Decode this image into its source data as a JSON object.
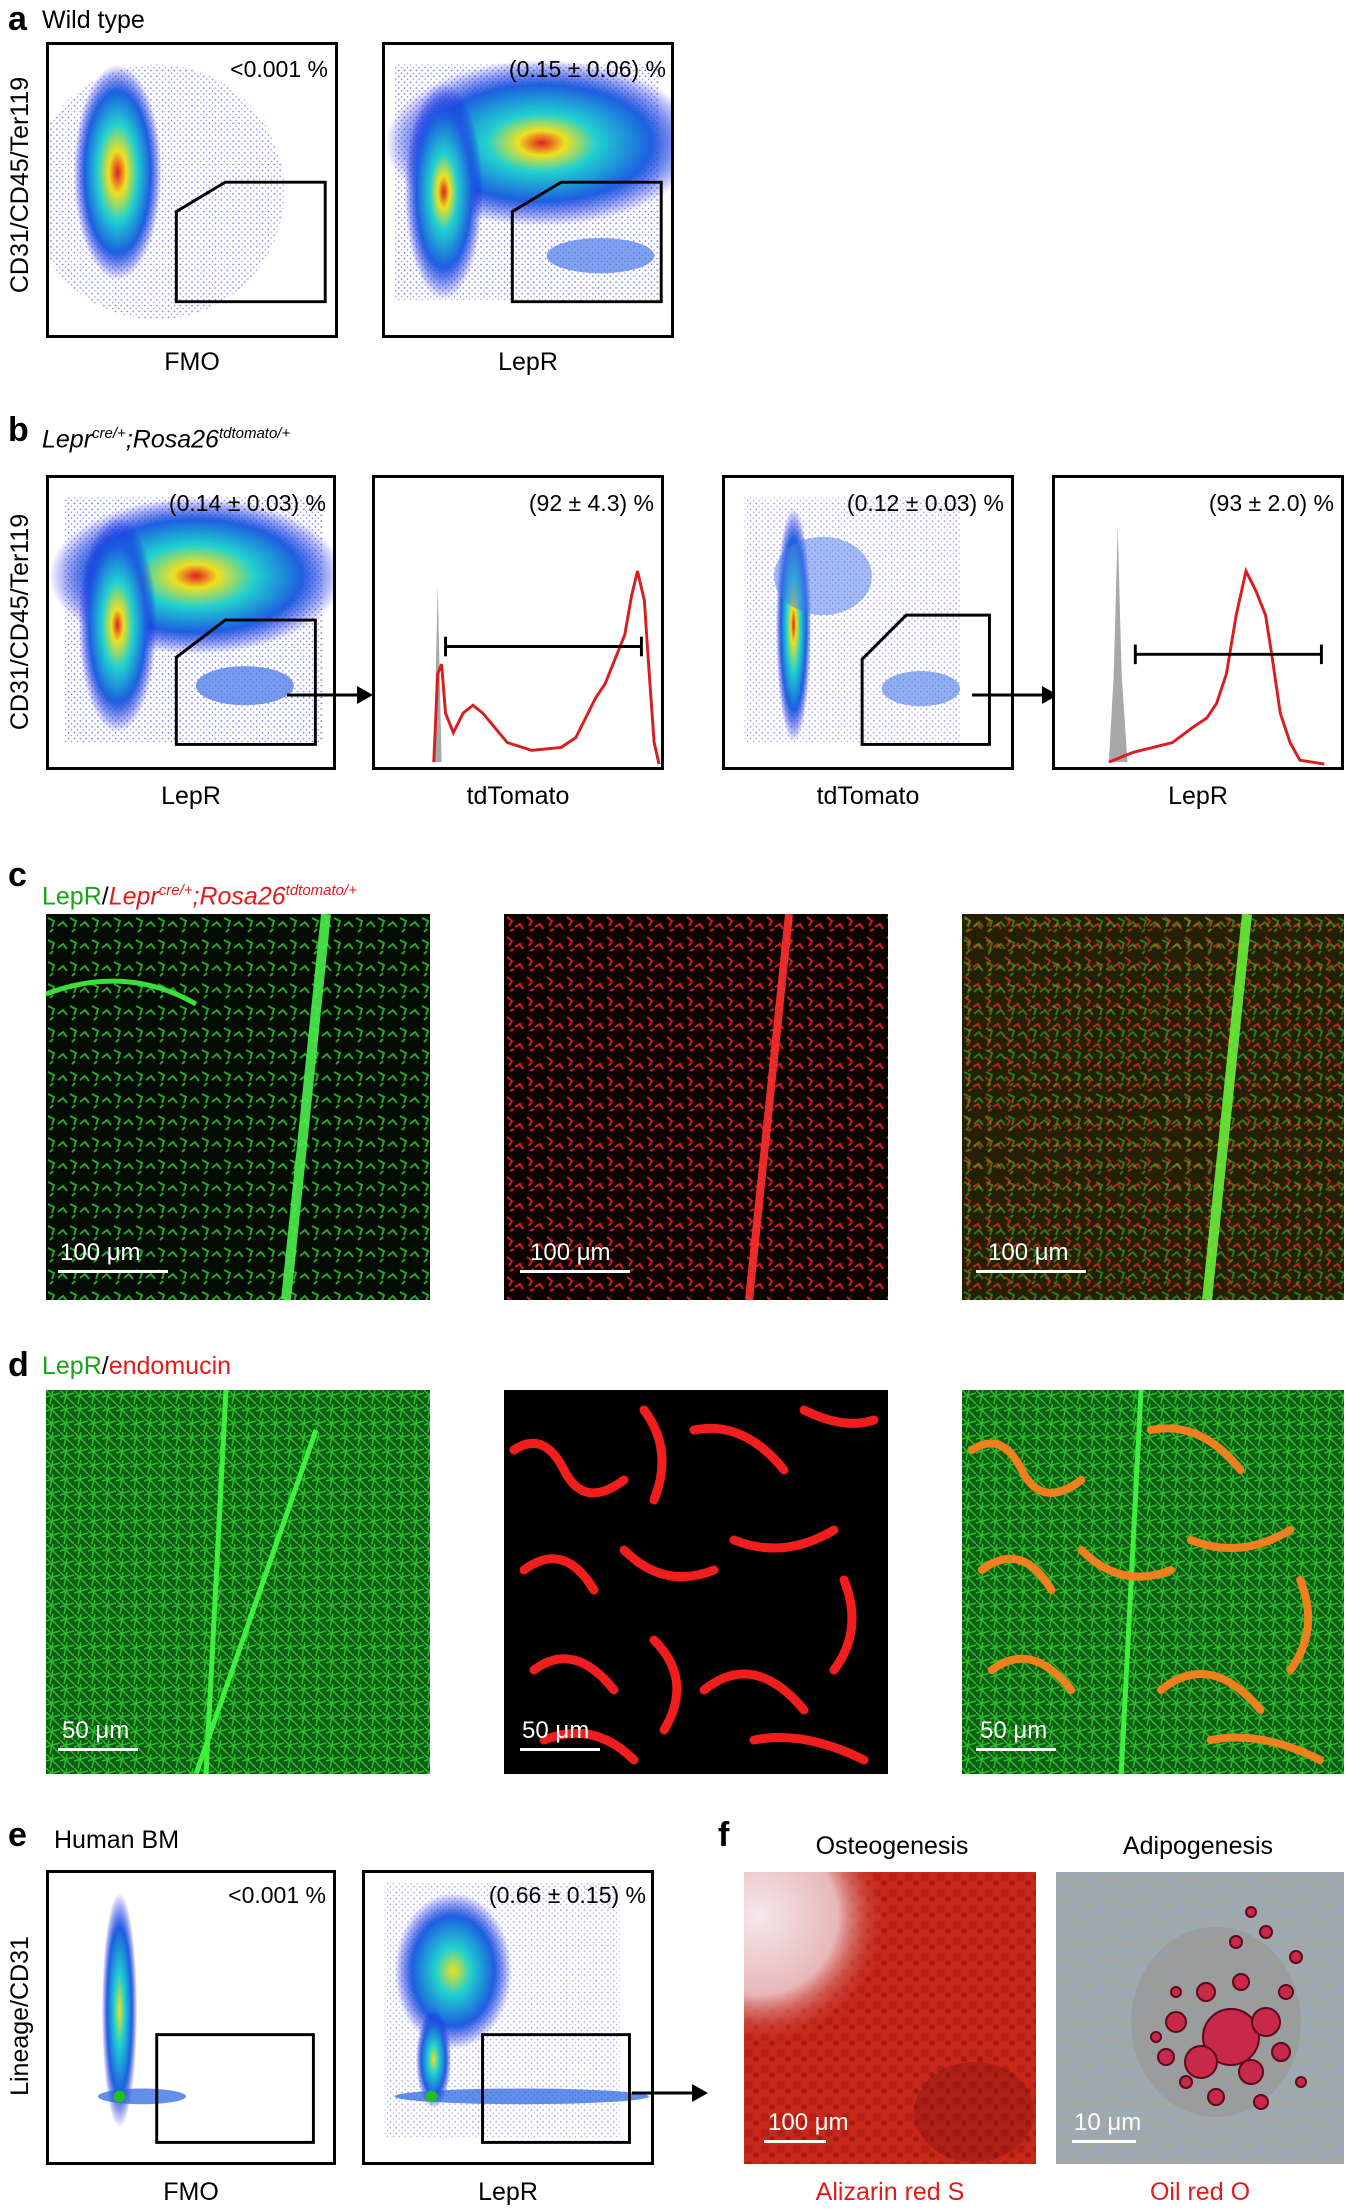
{
  "panel_a": {
    "letter": "a",
    "title": "Wild type",
    "ylabel": "CD31/CD45/Ter119",
    "plots": [
      {
        "pct": "<0.001 %",
        "xlabel": "FMO"
      },
      {
        "pct": "(0.15 ± 0.06) %",
        "xlabel": "LepR"
      }
    ]
  },
  "panel_b": {
    "letter": "b",
    "title_gene1": "Lepr",
    "title_sup1": "cre/+",
    "title_gene2": ";Rosa26",
    "title_sup2": "tdtomato/+",
    "ylabel": "CD31/CD45/Ter119",
    "plots": [
      {
        "pct": "(0.14 ± 0.03) %",
        "xlabel": "LepR"
      },
      {
        "pct": "(92 ± 4.3) %",
        "xlabel": "tdTomato"
      },
      {
        "pct": "(0.12 ± 0.03) %",
        "xlabel": "tdTomato"
      },
      {
        "pct": "(93 ± 2.0) %",
        "xlabel": "LepR"
      }
    ]
  },
  "panel_c": {
    "letter": "c",
    "title_green": "LepR",
    "title_sep": "/",
    "title_red1": "Lepr",
    "title_sup1": "cre/+",
    "title_red2": ";Rosa26",
    "title_sup2": "tdtomato/+",
    "scale": "100 μm"
  },
  "panel_d": {
    "letter": "d",
    "title_green": "LepR",
    "title_sep": "/",
    "title_red": "endomucin",
    "scale": "50 μm"
  },
  "panel_e": {
    "letter": "e",
    "title": "Human BM",
    "ylabel": "Lineage/CD31",
    "plots": [
      {
        "pct": "<0.001 %",
        "xlabel": "FMO"
      },
      {
        "pct": "(0.66 ± 0.15) %",
        "xlabel": "LepR"
      }
    ]
  },
  "panel_f": {
    "letter": "f",
    "images": [
      {
        "title": "Osteogenesis",
        "stain": "Alizarin red S",
        "scale": "100 μm"
      },
      {
        "title": "Adipogenesis",
        "stain": "Oil red O",
        "scale": "10 μm"
      }
    ]
  },
  "colors": {
    "histogram_line": "#d81e1e",
    "histogram_fill": "#a8a8a8",
    "dots": "#1010e0",
    "green_text": "#1aa31a",
    "red_text": "#e01b1b"
  }
}
